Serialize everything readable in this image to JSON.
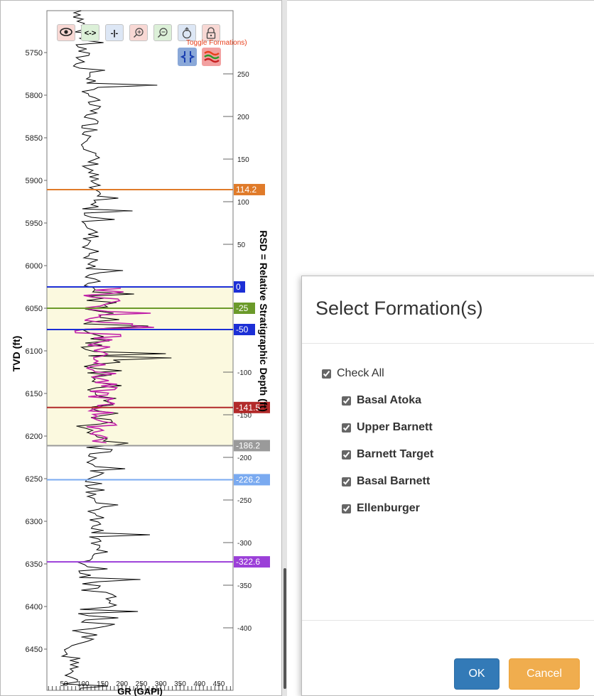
{
  "well_log": {
    "y_axis_label": "TVD (ft)",
    "x_axis_label": "GR (GAPI)",
    "rsd_axis_label": "RSD = Relative Stratigraphic Depth (ft)",
    "tvd_ticks": [
      "5750",
      "5800",
      "5850",
      "5900",
      "5950",
      "6000",
      "6050",
      "6100",
      "6150",
      "6200",
      "6250",
      "6300",
      "6350",
      "6400",
      "6450"
    ],
    "tvd_values": [
      5750,
      5800,
      5850,
      5900,
      5950,
      6000,
      6050,
      6100,
      6150,
      6200,
      6250,
      6300,
      6350,
      6400,
      6450
    ],
    "rsd_ticks": [
      "250",
      "200",
      "150",
      "100",
      "50",
      "-100",
      "-150",
      "-200",
      "-250",
      "-300",
      "-350",
      "-400"
    ],
    "rsd_values": [
      250,
      200,
      150,
      100,
      50,
      -100,
      -150,
      -200,
      -250,
      -300,
      -350,
      -400
    ],
    "gr_ticks": [
      "50",
      "100",
      "150",
      "200",
      "250",
      "300",
      "350",
      "400",
      "450"
    ],
    "gr_values": [
      50,
      100,
      150,
      200,
      250,
      300,
      350,
      400,
      450
    ],
    "formation_lines": [
      {
        "label": "114.2",
        "color": "#e07b2a",
        "rsd": 114.2
      },
      {
        "label": "0",
        "color": "#1c2fd6",
        "rsd": 0
      },
      {
        "label": "-25",
        "color": "#6b9a2a",
        "rsd": -25
      },
      {
        "label": "-50",
        "color": "#1c2fd6",
        "rsd": -50
      },
      {
        "label": "-141.5",
        "color": "#b22a2a",
        "rsd": -141.5
      },
      {
        "label": "-186.2",
        "color": "#9a9a9a",
        "rsd": -186.2
      },
      {
        "label": "-226.2",
        "color": "#7aaaf0",
        "rsd": -226.2
      },
      {
        "label": "-322.6",
        "color": "#9b3fd8",
        "rsd": -322.6
      }
    ],
    "colors": {
      "gr_curve": "#000000",
      "target_curve": "#c020a8",
      "zone_fill": "#fbf9df"
    }
  },
  "toolbar": {
    "toggle_label": "Toggle Formations)",
    "buttons": [
      {
        "name": "view-icon",
        "glyph": "eye",
        "bg": "#f8d8d4"
      },
      {
        "name": "pan-horizontal-icon",
        "glyph": "<->",
        "bg": "#dcf0d8"
      },
      {
        "name": "split-icon",
        "glyph": "-|-",
        "bg": "#dde7f5"
      },
      {
        "name": "zoom-in-icon",
        "glyph": "zoomin",
        "bg": "#f8d8d4"
      },
      {
        "name": "zoom-out-icon",
        "glyph": "zoomout",
        "bg": "#dcf0d8"
      },
      {
        "name": "reset-zoom-icon",
        "glyph": "reset",
        "bg": "#dde7f5"
      },
      {
        "name": "lock-icon",
        "glyph": "lock",
        "bg": "#f8d8d4"
      }
    ]
  },
  "dialog": {
    "title": "Select Formation(s)",
    "check_all": "Check All",
    "formations": [
      "Basal Atoka",
      "Upper Barnett",
      "Barnett Target",
      "Basal Barnett",
      "Ellenburger"
    ],
    "ok": "OK",
    "cancel": "Cancel"
  }
}
